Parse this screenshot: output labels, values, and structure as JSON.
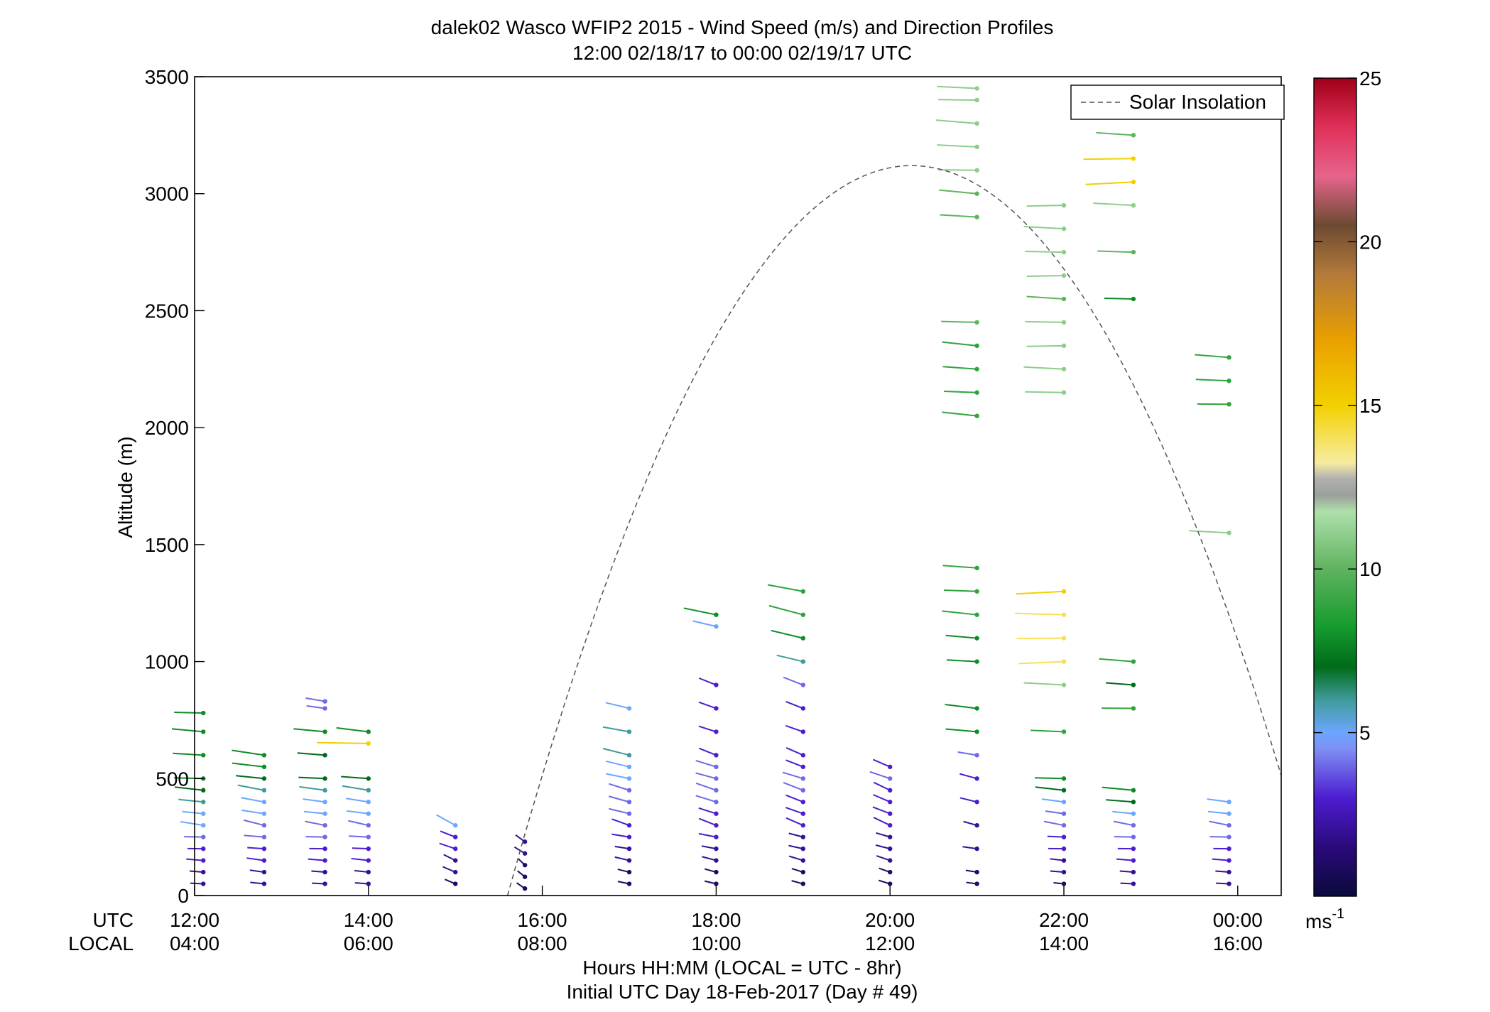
{
  "title": "dalek02 Wasco WFIP2 2015 - Wind Speed (m/s) and Direction Profiles",
  "subtitle": "12:00 02/18/17 to 00:00 02/19/17  UTC",
  "ylabel": "Altitude (m)",
  "row_labels": {
    "utc": "UTC",
    "local": "LOCAL"
  },
  "xlabel": "Hours HH:MM  (LOCAL = UTC - 8hr)",
  "footer": "Initial UTC Day 18-Feb-2017 (Day # 49)",
  "legend": {
    "label": "Solar Insolation"
  },
  "colorbar": {
    "unit_base": "ms",
    "unit_exp": "-1",
    "ticks": [
      "5",
      "10",
      "15",
      "20",
      "25"
    ]
  },
  "chart_data": {
    "type": "scatter",
    "title": "dalek02 Wasco WFIP2 2015 - Wind Speed (m/s) and Direction Profiles",
    "subtitle": "12:00 02/18/17 to 00:00 02/19/17  UTC",
    "xlabel": "Hours HH:MM  (LOCAL = UTC - 8hr)",
    "ylabel": "Altitude (m)",
    "xlim": [
      12,
      24.5
    ],
    "ylim": [
      0,
      3500
    ],
    "yticks": [
      "0",
      "500",
      "1000",
      "1500",
      "2000",
      "2500",
      "3000",
      "3500"
    ],
    "xticks_utc": [
      "12:00",
      "14:00",
      "16:00",
      "18:00",
      "20:00",
      "22:00",
      "00:00"
    ],
    "xticks_local": [
      "04:00",
      "06:00",
      "08:00",
      "10:00",
      "12:00",
      "14:00",
      "16:00"
    ],
    "colorbar_range": [
      0,
      25
    ],
    "solar_insolation": {
      "start_hour": 15.6,
      "peak_hour": 20.25,
      "peak_altitude": 3120,
      "end_hour": 24.5,
      "end_altitude": 620
    },
    "series": [
      {
        "hour": 12.1,
        "altitudes": [
          50,
          100,
          150,
          200,
          250,
          300,
          350,
          400,
          450,
          500,
          600,
          700,
          780
        ],
        "speeds": [
          2,
          2,
          3,
          3,
          4,
          5,
          5,
          6,
          7,
          8,
          8,
          8,
          8
        ],
        "dir_deg": 250
      },
      {
        "hour": 12.8,
        "altitudes": [
          50,
          100,
          150,
          200,
          250,
          300,
          350,
          400,
          450,
          500,
          550,
          600
        ],
        "speeds": [
          2,
          2,
          3,
          3,
          4,
          4,
          5,
          5,
          6,
          7,
          8,
          8
        ],
        "dir_deg": 260
      },
      {
        "hour": 13.5,
        "altitudes": [
          50,
          100,
          150,
          200,
          250,
          300,
          350,
          400,
          450,
          500,
          600,
          700,
          800,
          830
        ],
        "speeds": [
          2,
          2,
          3,
          3,
          4,
          4,
          5,
          5,
          6,
          7,
          7,
          8,
          4,
          4
        ],
        "dir_deg": 250
      },
      {
        "hour": 14.0,
        "altitudes": [
          50,
          100,
          150,
          200,
          250,
          300,
          350,
          400,
          450,
          500,
          650,
          700
        ],
        "speeds": [
          2,
          2,
          3,
          3,
          4,
          4,
          5,
          5,
          6,
          7,
          15,
          8
        ],
        "dir_deg": 255
      },
      {
        "hour": 15.0,
        "altitudes": [
          50,
          100,
          150,
          200,
          250,
          300
        ],
        "speeds": [
          1,
          2,
          2,
          3,
          3,
          5
        ],
        "dir_deg": 300
      },
      {
        "hour": 15.8,
        "altitudes": [
          30,
          80,
          130,
          180,
          230
        ],
        "speeds": [
          1,
          1,
          1,
          2,
          2
        ],
        "dir_deg": 320
      },
      {
        "hour": 17.0,
        "altitudes": [
          50,
          100,
          150,
          200,
          250,
          300,
          350,
          400,
          450,
          500,
          550,
          600,
          700,
          800
        ],
        "speeds": [
          1,
          1,
          2,
          2,
          3,
          3,
          4,
          4,
          4,
          5,
          5,
          6,
          6,
          5
        ],
        "dir_deg": 270
      },
      {
        "hour": 18.0,
        "altitudes": [
          50,
          100,
          150,
          200,
          250,
          300,
          350,
          400,
          450,
          500,
          550,
          600,
          700,
          800,
          900,
          1150,
          1200
        ],
        "speeds": [
          1,
          1,
          2,
          2,
          3,
          3,
          3,
          4,
          4,
          4,
          4,
          3,
          3,
          3,
          3,
          5,
          8
        ],
        "dir_deg": 275
      },
      {
        "hour": 19.0,
        "altitudes": [
          50,
          100,
          150,
          200,
          250,
          300,
          350,
          400,
          450,
          500,
          550,
          600,
          700,
          800,
          900,
          1000,
          1100,
          1200,
          1300
        ],
        "speeds": [
          1,
          1,
          2,
          2,
          2,
          3,
          3,
          3,
          4,
          4,
          3,
          3,
          3,
          3,
          4,
          6,
          8,
          9,
          9
        ],
        "dir_deg": 280
      },
      {
        "hour": 20.0,
        "altitudes": [
          50,
          100,
          150,
          200,
          250,
          300,
          350,
          400,
          450,
          500,
          550
        ],
        "speeds": [
          1,
          1,
          2,
          2,
          2,
          3,
          3,
          3,
          3,
          4,
          3
        ],
        "dir_deg": 285
      },
      {
        "hour": 21.0,
        "altitudes": [
          50,
          100,
          200,
          300,
          400,
          500,
          600,
          700,
          800,
          1000,
          1100,
          1200,
          1300,
          1400,
          2050,
          2150,
          2250,
          2350,
          2450,
          2900,
          3000,
          3100,
          3200,
          3300,
          3400,
          3450
        ],
        "speeds": [
          1,
          1,
          2,
          2,
          3,
          3,
          4,
          8,
          8,
          8,
          8,
          9,
          9,
          9,
          9,
          9,
          9,
          9,
          10,
          10,
          10,
          11,
          11,
          11,
          11,
          11
        ],
        "dir_deg": 255
      },
      {
        "hour": 22.0,
        "altitudes": [
          50,
          100,
          150,
          200,
          250,
          300,
          350,
          400,
          450,
          500,
          700,
          900,
          1000,
          1100,
          1200,
          1300,
          2150,
          2250,
          2350,
          2450,
          2550,
          2650,
          2750,
          2850,
          2950
        ],
        "speeds": [
          1,
          2,
          2,
          3,
          3,
          4,
          4,
          5,
          7,
          8,
          9,
          11,
          14,
          14,
          14,
          15,
          11,
          11,
          11,
          11,
          10,
          11,
          11,
          11,
          11
        ],
        "dir_deg": 250
      },
      {
        "hour": 22.8,
        "altitudes": [
          50,
          100,
          150,
          200,
          250,
          300,
          350,
          400,
          450,
          800,
          900,
          1000,
          2550,
          2750,
          2950,
          3050,
          3150,
          3250
        ],
        "speeds": [
          2,
          2,
          3,
          3,
          4,
          4,
          5,
          7,
          8,
          9,
          7,
          9,
          8,
          10,
          11,
          15,
          15,
          10
        ],
        "dir_deg": 250
      },
      {
        "hour": 23.9,
        "altitudes": [
          50,
          100,
          150,
          200,
          250,
          300,
          350,
          400,
          1550,
          2100,
          2200,
          2300
        ],
        "speeds": [
          2,
          2,
          3,
          3,
          4,
          4,
          5,
          5,
          11,
          9,
          9,
          9
        ],
        "dir_deg": 250
      }
    ]
  }
}
